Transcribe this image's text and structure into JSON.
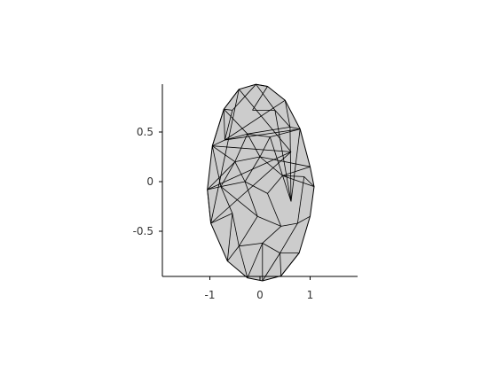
{
  "chart_data": {
    "type": "scatter",
    "subtype": "triangulated-surface-projection",
    "title": "",
    "xlabel": "",
    "ylabel": "",
    "xlim": [
      -1.95,
      1.95
    ],
    "ylim": [
      -0.95,
      0.98
    ],
    "xticks": [
      -1,
      0,
      1
    ],
    "xtick_labels": [
      "-1",
      "0",
      "1"
    ],
    "yticks": [
      0.5,
      0,
      -0.5
    ],
    "ytick_labels": [
      "0.5",
      "0",
      "-0.5"
    ],
    "grid": false,
    "face_color": "#cccccc",
    "edge_color": "#000000",
    "outline": [
      [
        -0.08,
        0.98
      ],
      [
        0.15,
        0.96
      ],
      [
        0.5,
        0.82
      ],
      [
        0.8,
        0.53
      ],
      [
        1.0,
        0.15
      ],
      [
        1.08,
        -0.05
      ],
      [
        1.0,
        -0.35
      ],
      [
        0.78,
        -0.72
      ],
      [
        0.42,
        -0.95
      ],
      [
        0.05,
        -1.0
      ],
      [
        -0.25,
        -0.97
      ],
      [
        -0.65,
        -0.8
      ],
      [
        -0.98,
        -0.42
      ],
      [
        -1.05,
        -0.08
      ],
      [
        -0.95,
        0.36
      ],
      [
        -0.72,
        0.73
      ],
      [
        -0.42,
        0.93
      ]
    ],
    "interior_vertices": [
      [
        -0.55,
        0.72
      ],
      [
        -0.15,
        0.72
      ],
      [
        0.3,
        0.72
      ],
      [
        0.6,
        0.55
      ],
      [
        -0.7,
        0.42
      ],
      [
        -0.25,
        0.48
      ],
      [
        0.2,
        0.45
      ],
      [
        0.62,
        0.3
      ],
      [
        -0.5,
        0.2
      ],
      [
        0.0,
        0.25
      ],
      [
        0.45,
        0.06
      ],
      [
        0.88,
        0.05
      ],
      [
        -0.78,
        -0.05
      ],
      [
        -0.3,
        0.0
      ],
      [
        0.15,
        -0.12
      ],
      [
        0.62,
        -0.2
      ],
      [
        -0.55,
        -0.32
      ],
      [
        -0.05,
        -0.35
      ],
      [
        0.42,
        -0.45
      ],
      [
        0.75,
        -0.42
      ],
      [
        -0.42,
        -0.65
      ],
      [
        0.05,
        -0.62
      ],
      [
        0.4,
        -0.72
      ],
      [
        -0.15,
        -0.85
      ]
    ],
    "edges": [
      [
        17,
        0
      ],
      [
        0,
        1
      ],
      [
        1,
        18
      ],
      [
        18,
        19
      ],
      [
        0,
        19
      ],
      [
        19,
        20
      ],
      [
        20,
        2
      ],
      [
        2,
        21
      ],
      [
        21,
        3
      ],
      [
        3,
        20
      ],
      [
        15,
        17
      ],
      [
        17,
        21
      ],
      [
        21,
        22
      ],
      [
        22,
        20
      ],
      [
        15,
        21
      ],
      [
        15,
        22
      ],
      [
        22,
        23
      ],
      [
        14,
        15
      ],
      [
        14,
        21
      ],
      [
        14,
        25
      ],
      [
        25,
        22
      ],
      [
        22,
        26
      ],
      [
        26,
        23
      ],
      [
        23,
        3
      ],
      [
        26,
        4
      ],
      [
        4,
        27
      ],
      [
        26,
        27
      ],
      [
        25,
        26
      ],
      [
        25,
        30
      ],
      [
        30,
        26
      ],
      [
        12,
        13
      ],
      [
        13,
        25
      ],
      [
        25,
        29
      ],
      [
        29,
        13
      ],
      [
        14,
        29
      ],
      [
        14,
        24
      ],
      [
        29,
        30
      ],
      [
        30,
        31
      ],
      [
        31,
        27
      ],
      [
        27,
        28
      ],
      [
        28,
        5
      ],
      [
        27,
        5
      ],
      [
        12,
        33
      ],
      [
        33,
        29
      ],
      [
        29,
        34
      ],
      [
        34,
        30
      ],
      [
        34,
        35
      ],
      [
        35,
        31
      ],
      [
        35,
        36
      ],
      [
        36,
        28
      ],
      [
        36,
        6
      ],
      [
        33,
        37
      ],
      [
        37,
        34
      ],
      [
        37,
        38
      ],
      [
        38,
        35
      ],
      [
        38,
        39
      ],
      [
        39,
        36
      ],
      [
        39,
        7
      ],
      [
        11,
        33
      ],
      [
        11,
        37
      ],
      [
        10,
        37
      ],
      [
        10,
        38
      ],
      [
        9,
        38
      ],
      [
        9,
        39
      ],
      [
        8,
        39
      ],
      [
        8,
        7
      ],
      [
        13,
        24
      ],
      [
        24,
        12
      ],
      [
        12,
        16
      ],
      [
        16,
        24
      ],
      [
        16,
        15
      ],
      [
        32,
        20
      ],
      [
        32,
        19
      ],
      [
        32,
        3
      ],
      [
        32,
        23
      ]
    ]
  }
}
